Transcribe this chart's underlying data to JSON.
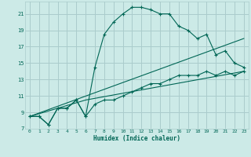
{
  "xlabel": "Humidex (Indice chaleur)",
  "bg_color": "#cceae7",
  "grid_color": "#aacccc",
  "line_color": "#006655",
  "xlim": [
    -0.5,
    23.5
  ],
  "ylim": [
    7,
    22.5
  ],
  "yticks": [
    7,
    9,
    11,
    13,
    15,
    17,
    19,
    21
  ],
  "xticks": [
    0,
    1,
    2,
    3,
    4,
    5,
    6,
    7,
    8,
    9,
    10,
    11,
    12,
    13,
    14,
    15,
    16,
    17,
    18,
    19,
    20,
    21,
    22,
    23
  ],
  "line1_x": [
    0,
    1,
    2,
    3,
    4,
    5,
    6,
    7,
    8,
    9,
    10,
    11,
    12,
    13,
    14,
    15,
    16,
    17,
    18,
    19,
    20,
    21,
    22,
    23
  ],
  "line1_y": [
    8.5,
    8.5,
    7.5,
    9.5,
    9.5,
    10.5,
    8.5,
    14.5,
    18.5,
    20.0,
    21.0,
    21.8,
    21.8,
    21.5,
    21.0,
    21.0,
    19.5,
    19.0,
    18.0,
    18.5,
    16.0,
    16.5,
    15.0,
    14.5
  ],
  "line2_x": [
    0,
    1,
    2,
    3,
    4,
    5,
    6,
    7,
    8,
    9,
    10,
    11,
    12,
    13,
    14,
    15,
    16,
    17,
    18,
    19,
    20,
    21,
    22,
    23
  ],
  "line2_y": [
    8.5,
    8.5,
    7.5,
    9.5,
    9.5,
    10.5,
    8.5,
    10.0,
    10.5,
    10.5,
    11.0,
    11.5,
    12.0,
    12.5,
    12.5,
    13.0,
    13.5,
    13.5,
    13.5,
    14.0,
    13.5,
    14.0,
    13.5,
    14.0
  ],
  "line3_x": [
    0,
    23
  ],
  "line3_y": [
    8.5,
    18.0
  ],
  "line4_x": [
    0,
    6,
    23
  ],
  "line4_y": [
    8.5,
    10.5,
    14.0
  ]
}
